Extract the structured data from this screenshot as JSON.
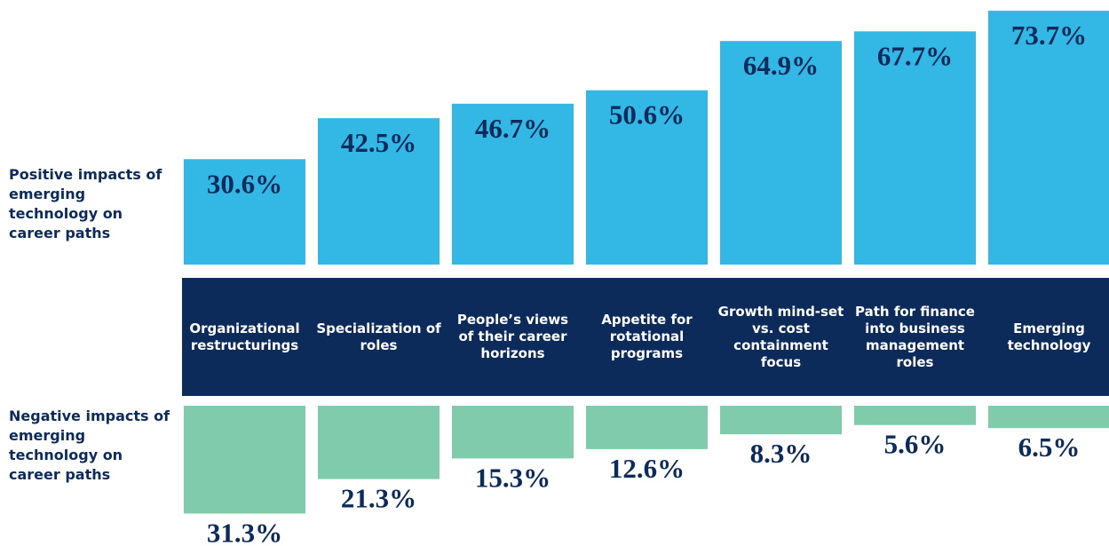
{
  "chart_data": {
    "type": "diverging-bar",
    "side_labels": [
      {
        "bold": "Positive",
        "rest": "impacts of emerging technology on career paths"
      },
      {
        "bold": "Negative",
        "rest": "impacts of emerging technology on career paths"
      }
    ],
    "categories": [
      "Organizational restructurings",
      "Specialization of roles",
      "People’s views of their career horizons",
      "Appetite for rotational programs",
      "Growth mind-set vs. cost containment focus",
      "Path for finance into business management roles",
      "Emerging technology"
    ],
    "series": [
      {
        "name": "Positive",
        "color": "#33b8e6",
        "values": [
          30.6,
          42.5,
          46.7,
          50.6,
          64.9,
          67.7,
          73.7
        ],
        "value_labels": [
          "30.6%",
          "42.5%",
          "46.7%",
          "50.6%",
          "64.9%",
          "67.7%",
          "73.7%"
        ]
      },
      {
        "name": "Negative",
        "color": "#80cbab",
        "values": [
          31.3,
          21.3,
          15.3,
          12.6,
          8.3,
          5.6,
          6.5
        ],
        "value_labels": [
          "31.3%",
          "21.3%",
          "15.3%",
          "12.6%",
          "8.3%",
          "5.6%",
          "6.5%"
        ]
      }
    ],
    "band_color": "#0c2b5a"
  }
}
